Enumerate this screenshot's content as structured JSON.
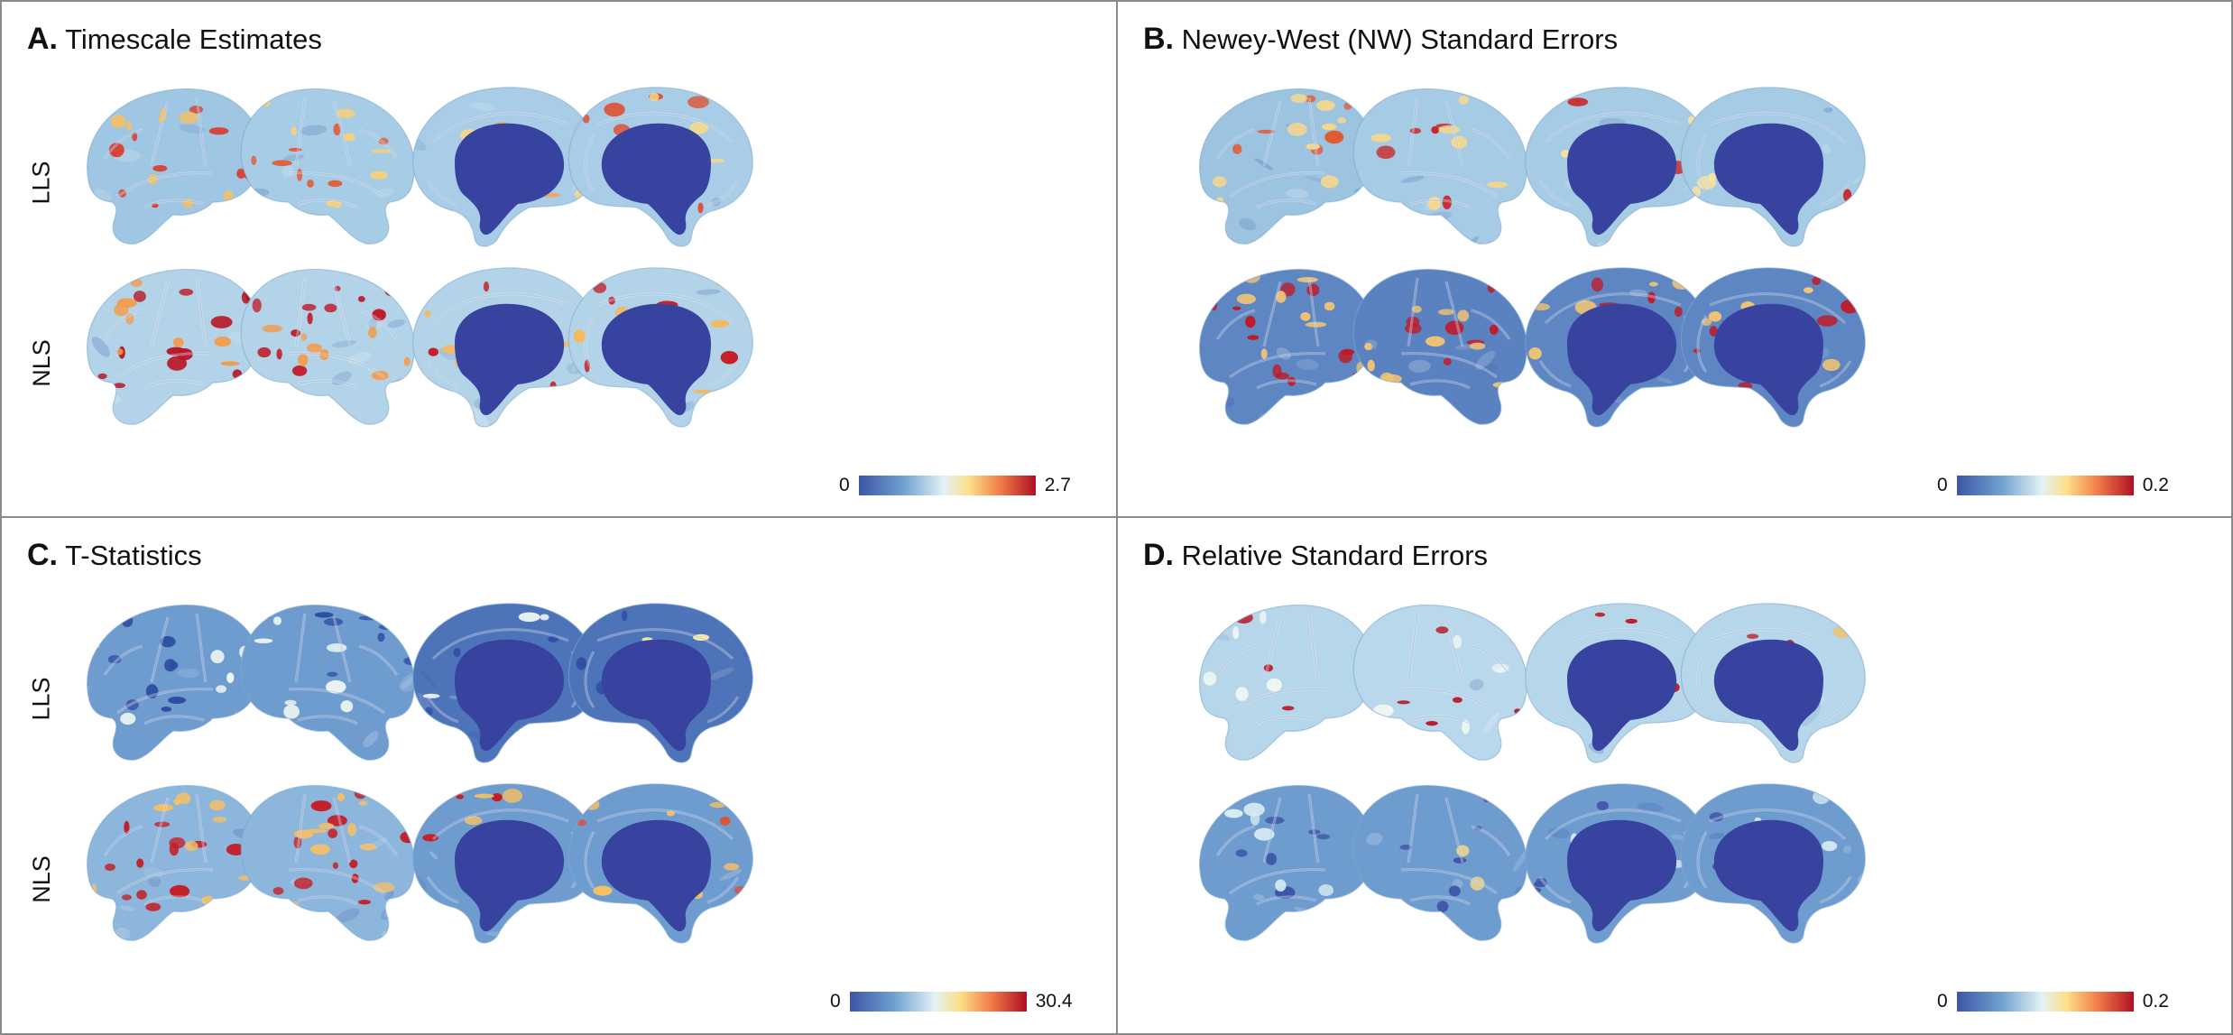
{
  "row_labels": [
    "LLS",
    "NLS"
  ],
  "panels": [
    {
      "id": "a",
      "letter": "A.",
      "title": "Timescale Estimates",
      "colorbar": {
        "min": "0",
        "max": "2.7"
      }
    },
    {
      "id": "b",
      "letter": "B.",
      "title": "Newey-West (NW) Standard Errors",
      "colorbar": {
        "min": "0",
        "max": "0.2"
      }
    },
    {
      "id": "c",
      "letter": "C.",
      "title": "T-Statistics",
      "colorbar": {
        "min": "0",
        "max": "30.4"
      }
    },
    {
      "id": "d",
      "letter": "D.",
      "title": "Relative Standard Errors",
      "colorbar": {
        "min": "0",
        "max": "0.2"
      }
    }
  ],
  "colormap": [
    "#3d55a6",
    "#6fa0d0",
    "#e3f2f5",
    "#fce08a",
    "#f07b48",
    "#b00f24"
  ],
  "views": [
    "lateral-left",
    "lateral-right",
    "medial-left",
    "medial-right"
  ],
  "maps": {
    "a": [
      {
        "base": "#9fc6e2",
        "hot": [
          {
            "c": "#d93a2b",
            "n": 10
          },
          {
            "c": "#f6c064",
            "n": 10
          }
        ]
      },
      {
        "base": "#a7cce5",
        "hot": [
          {
            "c": "#e35a34",
            "n": 8
          },
          {
            "c": "#f8cf79",
            "n": 8
          }
        ]
      },
      {
        "base": "#a9cde6",
        "hot": [
          {
            "c": "#f0a55a",
            "n": 5
          },
          {
            "c": "#f8d98a",
            "n": 4
          }
        ]
      },
      {
        "base": "#a9cde6",
        "hot": [
          {
            "c": "#e05033",
            "n": 6
          },
          {
            "c": "#f8d98a",
            "n": 4
          }
        ]
      },
      {
        "base": "#b3d4e8",
        "hot": [
          {
            "c": "#b81424",
            "n": 14
          },
          {
            "c": "#f29c4e",
            "n": 12
          }
        ]
      },
      {
        "base": "#b3d4e8",
        "hot": [
          {
            "c": "#c01a26",
            "n": 12
          },
          {
            "c": "#f29c4e",
            "n": 12
          }
        ]
      },
      {
        "base": "#b3d4e8",
        "hot": [
          {
            "c": "#c41e27",
            "n": 9
          },
          {
            "c": "#f6b860",
            "n": 6
          }
        ]
      },
      {
        "base": "#b3d4e8",
        "hot": [
          {
            "c": "#c41e27",
            "n": 9
          },
          {
            "c": "#f6b860",
            "n": 6
          }
        ]
      }
    ],
    "b": [
      {
        "base": "#9cc4e1",
        "hot": [
          {
            "c": "#e15a36",
            "n": 6
          },
          {
            "c": "#f8d88a",
            "n": 10
          }
        ]
      },
      {
        "base": "#a6cbe5",
        "hot": [
          {
            "c": "#c9262a",
            "n": 5
          },
          {
            "c": "#f8d88a",
            "n": 8
          }
        ]
      },
      {
        "base": "#a6cbe5",
        "hot": [
          {
            "c": "#c9262a",
            "n": 3
          },
          {
            "c": "#f8e3a0",
            "n": 5
          }
        ]
      },
      {
        "base": "#a6cbe5",
        "hot": [
          {
            "c": "#c9262a",
            "n": 2
          },
          {
            "c": "#f8e3a0",
            "n": 4
          }
        ]
      },
      {
        "base": "#5d86c3",
        "hot": [
          {
            "c": "#c01a26",
            "n": 12
          },
          {
            "c": "#f5c571",
            "n": 12
          }
        ]
      },
      {
        "base": "#5a82c0",
        "hot": [
          {
            "c": "#c01a26",
            "n": 9
          },
          {
            "c": "#f5c571",
            "n": 10
          }
        ]
      },
      {
        "base": "#5d86c3",
        "hot": [
          {
            "c": "#c01a26",
            "n": 8
          },
          {
            "c": "#f5c571",
            "n": 10
          }
        ]
      },
      {
        "base": "#5d86c3",
        "hot": [
          {
            "c": "#c01a26",
            "n": 7
          },
          {
            "c": "#f5c571",
            "n": 8
          }
        ]
      }
    ],
    "c": [
      {
        "base": "#6f9ccf",
        "hot": [
          {
            "c": "#2f4ea3",
            "n": 10
          },
          {
            "c": "#eef6f2",
            "n": 8
          }
        ]
      },
      {
        "base": "#6f9ccf",
        "hot": [
          {
            "c": "#2f4ea3",
            "n": 10
          },
          {
            "c": "#eef6f2",
            "n": 8
          }
        ]
      },
      {
        "base": "#4d73b9",
        "hot": [
          {
            "c": "#2f4ea3",
            "n": 8
          },
          {
            "c": "#eef6f2",
            "n": 6
          }
        ]
      },
      {
        "base": "#4d73b9",
        "hot": [
          {
            "c": "#2f4ea3",
            "n": 8
          },
          {
            "c": "#f8e7a2",
            "n": 4
          }
        ]
      },
      {
        "base": "#8db6dc",
        "hot": [
          {
            "c": "#c41e27",
            "n": 14
          },
          {
            "c": "#f6c064",
            "n": 12
          }
        ]
      },
      {
        "base": "#8db6dc",
        "hot": [
          {
            "c": "#c41e27",
            "n": 14
          },
          {
            "c": "#f6c064",
            "n": 12
          }
        ]
      },
      {
        "base": "#6f9ccf",
        "hot": [
          {
            "c": "#c41e27",
            "n": 6
          },
          {
            "c": "#f6c064",
            "n": 5
          }
        ]
      },
      {
        "base": "#6f9ccf",
        "hot": [
          {
            "c": "#e05033",
            "n": 5
          },
          {
            "c": "#f6c064",
            "n": 6
          }
        ]
      }
    ],
    "d": [
      {
        "base": "#b6d6ea",
        "hot": [
          {
            "c": "#c01a26",
            "n": 3
          },
          {
            "c": "#eef6f2",
            "n": 5
          }
        ]
      },
      {
        "base": "#b9d8eb",
        "hot": [
          {
            "c": "#b81424",
            "n": 5
          },
          {
            "c": "#eef6f2",
            "n": 5
          }
        ]
      },
      {
        "base": "#b6d6ea",
        "hot": [
          {
            "c": "#c01a26",
            "n": 4
          },
          {
            "c": "#f6c064",
            "n": 3
          }
        ]
      },
      {
        "base": "#b6d6ea",
        "hot": [
          {
            "c": "#c01a26",
            "n": 4
          },
          {
            "c": "#f6c064",
            "n": 3
          }
        ]
      },
      {
        "base": "#6f9ccf",
        "hot": [
          {
            "c": "#3d55a6",
            "n": 6
          },
          {
            "c": "#d6ebf2",
            "n": 6
          }
        ]
      },
      {
        "base": "#6f9ccf",
        "hot": [
          {
            "c": "#3d55a6",
            "n": 6
          },
          {
            "c": "#f5d78a",
            "n": 2
          }
        ]
      },
      {
        "base": "#6f9ccf",
        "hot": [
          {
            "c": "#3d55a6",
            "n": 6
          },
          {
            "c": "#d6ebf2",
            "n": 5
          }
        ]
      },
      {
        "base": "#6f9ccf",
        "hot": [
          {
            "c": "#3d55a6",
            "n": 6
          },
          {
            "c": "#d6ebf2",
            "n": 5
          }
        ]
      }
    ]
  }
}
